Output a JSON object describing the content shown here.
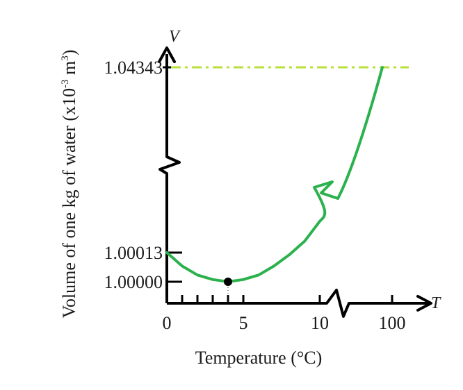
{
  "chart_data": {
    "type": "line",
    "ylabel": "Volume of one kg of water (x10",
    "ylabel_exp": "-3",
    "ylabel_unit": " m",
    "ylabel_unit_exp": "3",
    "ylabel_close": ")",
    "xlabel": "Temperature (°C)",
    "y_axis_symbol": "V",
    "x_axis_symbol": "T",
    "x_ticks": [
      "0",
      "5",
      "10",
      "100"
    ],
    "y_ticks": [
      "1.00000",
      "1.00013",
      "1.04343"
    ],
    "x_axis_break_after": 10,
    "y_axis_break_after": 1.00013,
    "series": [
      {
        "color": "#2bb14d",
        "points": [
          {
            "x": 0,
            "y": 1.00013
          },
          {
            "x": 1,
            "y": 1.00007
          },
          {
            "x": 2,
            "y": 1.00003
          },
          {
            "x": 3,
            "y": 1.00001
          },
          {
            "x": 4,
            "y": 1.0
          },
          {
            "x": 5,
            "y": 1.00001
          },
          {
            "x": 6,
            "y": 1.00003
          },
          {
            "x": 7,
            "y": 1.00007
          },
          {
            "x": 8,
            "y": 1.00012
          },
          {
            "x": 9,
            "y": 1.00018
          },
          {
            "x": 10,
            "y": 1.00027
          },
          {
            "x": 100,
            "y": 1.04343
          }
        ]
      }
    ],
    "marked_point": {
      "x": 4,
      "y": 1.0
    },
    "reference_line": {
      "y": 1.04343,
      "color": "#b8e03a",
      "style": "dash-dot"
    }
  }
}
